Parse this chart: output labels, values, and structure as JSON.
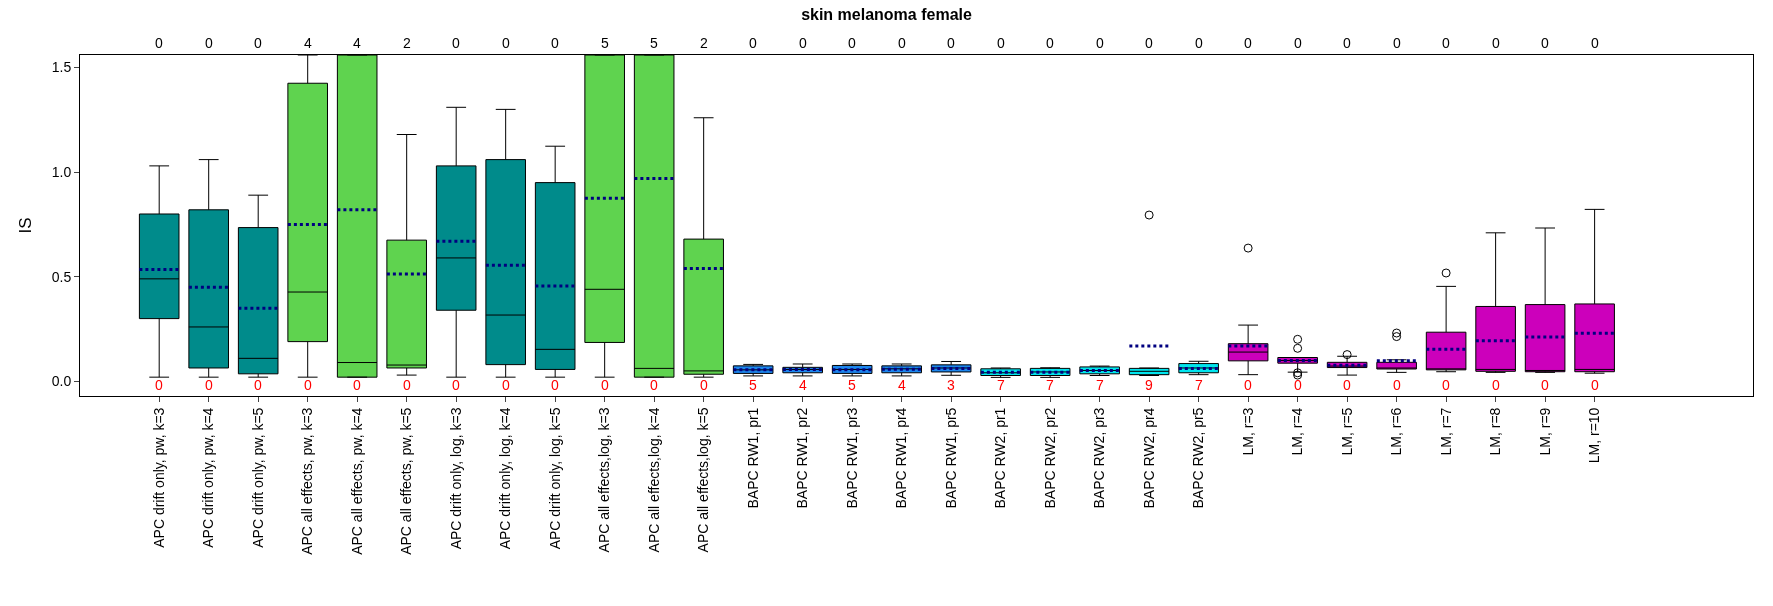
{
  "chart_data": {
    "type": "box",
    "title": "skin melanoma female",
    "ylabel": "IS",
    "categories": [
      "APC drift only, pw, k=3",
      "APC drift only, pw, k=4",
      "APC drift only, pw, k=5",
      "APC all effects, pw, k=3",
      "APC all effects, pw, k=4",
      "APC all effects, pw, k=5",
      "APC drift only, log, k=3",
      "APC drift only, log, k=4",
      "APC drift only, log, k=5",
      "APC all effects,log, k=3",
      "APC all effects,log, k=4",
      "APC all effects,log, k=5",
      "BAPC RW1, pr1",
      "BAPC RW1, pr2",
      "BAPC RW1, pr3",
      "BAPC RW1, pr4",
      "BAPC RW1, pr5",
      "BAPC RW2, pr1",
      "BAPC RW2, pr2",
      "BAPC RW2, pr3",
      "BAPC RW2, pr4",
      "BAPC RW2, pr5",
      "LM, r=3",
      "LM, r=4",
      "LM, r=5",
      "LM, r=6",
      "LM, r=7",
      "LM, r=8",
      "LM, r=9",
      "LM, r=10"
    ],
    "colors": [
      "#008b8b",
      "#008b8b",
      "#008b8b",
      "#5fd34f",
      "#5fd34f",
      "#5fd34f",
      "#008b8b",
      "#008b8b",
      "#008b8b",
      "#5fd34f",
      "#5fd34f",
      "#5fd34f",
      "#1c86ee",
      "#1c86ee",
      "#1c86ee",
      "#1c86ee",
      "#1c86ee",
      "#00e5ee",
      "#00e5ee",
      "#00e5ee",
      "#00e5ee",
      "#00e5ee",
      "#cc00bb",
      "#cc00bb",
      "#cc00bb",
      "#cc00bb",
      "#cc00bb",
      "#cc00bb",
      "#cc00bb",
      "#cc00bb"
    ],
    "boxes": [
      {
        "low": 0.02,
        "q1": 0.3,
        "median": 0.49,
        "q3": 0.8,
        "high": 1.03,
        "mean": 0.535
      },
      {
        "low": 0.02,
        "q1": 0.064,
        "median": 0.26,
        "q3": 0.82,
        "high": 1.06,
        "mean": 0.45
      },
      {
        "low": 0.02,
        "q1": 0.036,
        "median": 0.11,
        "q3": 0.735,
        "high": 0.89,
        "mean": 0.35
      },
      {
        "low": 0.02,
        "q1": 0.19,
        "median": 0.427,
        "q3": 1.425,
        "high": 1.56,
        "mean": 0.75
      },
      {
        "low": 0.02,
        "q1": 0.02,
        "median": 0.09,
        "q3": 1.56,
        "high": 1.56,
        "mean": 0.82
      },
      {
        "low": 0.03,
        "q1": 0.064,
        "median": 0.078,
        "q3": 0.675,
        "high": 1.18,
        "mean": 0.513
      },
      {
        "low": 0.02,
        "q1": 0.34,
        "median": 0.59,
        "q3": 1.03,
        "high": 1.31,
        "mean": 0.67
      },
      {
        "low": 0.02,
        "q1": 0.08,
        "median": 0.317,
        "q3": 1.06,
        "high": 1.3,
        "mean": 0.555
      },
      {
        "low": 0.02,
        "q1": 0.057,
        "median": 0.153,
        "q3": 0.95,
        "high": 1.124,
        "mean": 0.456
      },
      {
        "low": 0.02,
        "q1": 0.186,
        "median": 0.44,
        "q3": 1.56,
        "high": 1.56,
        "mean": 0.875
      },
      {
        "low": 0.02,
        "q1": 0.02,
        "median": 0.062,
        "q3": 1.56,
        "high": 1.56,
        "mean": 0.97
      },
      {
        "low": 0.02,
        "q1": 0.034,
        "median": 0.05,
        "q3": 0.68,
        "high": 1.26,
        "mean": 0.54
      },
      {
        "low": 0.026,
        "q1": 0.038,
        "median": 0.055,
        "q3": 0.074,
        "high": 0.081,
        "mean": 0.055
      },
      {
        "low": 0.026,
        "q1": 0.041,
        "median": 0.057,
        "q3": 0.067,
        "high": 0.083,
        "mean": 0.057
      },
      {
        "low": 0.026,
        "q1": 0.038,
        "median": 0.057,
        "q3": 0.076,
        "high": 0.083,
        "mean": 0.055
      },
      {
        "low": 0.026,
        "q1": 0.041,
        "median": 0.06,
        "q3": 0.074,
        "high": 0.083,
        "mean": 0.058
      },
      {
        "low": 0.029,
        "q1": 0.045,
        "median": 0.064,
        "q3": 0.079,
        "high": 0.095,
        "mean": 0.062
      },
      {
        "low": 0.019,
        "q1": 0.028,
        "median": 0.041,
        "q3": 0.06,
        "high": 0.064,
        "mean": 0.043
      },
      {
        "low": 0.019,
        "q1": 0.028,
        "median": 0.045,
        "q3": 0.062,
        "high": 0.065,
        "mean": 0.043
      },
      {
        "low": 0.028,
        "q1": 0.036,
        "median": 0.052,
        "q3": 0.069,
        "high": 0.073,
        "mean": 0.052
      },
      {
        "low": 0.028,
        "q1": 0.032,
        "median": 0.048,
        "q3": 0.062,
        "high": 0.064,
        "mean": 0.169,
        "outliers": [
          0.795
        ]
      },
      {
        "low": 0.032,
        "q1": 0.041,
        "median": 0.064,
        "q3": 0.085,
        "high": 0.096,
        "mean": 0.062
      },
      {
        "low": 0.032,
        "q1": 0.098,
        "median": 0.14,
        "q3": 0.18,
        "high": 0.269,
        "mean": 0.169,
        "outliers": [
          0.637
        ]
      },
      {
        "low": 0.044,
        "q1": 0.087,
        "median": 0.1,
        "q3": 0.114,
        "high": 0.114,
        "mean": 0.1,
        "outliers": [
          0.201,
          0.158,
          0.041,
          0.03
        ]
      },
      {
        "low": 0.03,
        "q1": 0.066,
        "median": 0.073,
        "q3": 0.091,
        "high": 0.12,
        "mean": 0.077,
        "outliers": [
          0.128
        ]
      },
      {
        "low": 0.043,
        "q1": 0.059,
        "median": 0.062,
        "q3": 0.091,
        "high": 0.103,
        "mean": 0.098,
        "outliers": [
          0.231,
          0.214
        ]
      },
      {
        "low": 0.046,
        "q1": 0.055,
        "median": 0.059,
        "q3": 0.235,
        "high": 0.454,
        "mean": 0.153,
        "outliers": [
          0.518
        ]
      },
      {
        "low": 0.043,
        "q1": 0.048,
        "median": 0.057,
        "q3": 0.358,
        "high": 0.71,
        "mean": 0.194
      },
      {
        "low": 0.043,
        "q1": 0.046,
        "median": 0.052,
        "q3": 0.367,
        "high": 0.733,
        "mean": 0.212
      },
      {
        "low": 0.039,
        "q1": 0.046,
        "median": 0.057,
        "q3": 0.37,
        "high": 0.822,
        "mean": 0.23
      }
    ],
    "ylim": [
      -0.07,
      1.56
    ],
    "yticks": [
      {
        "value": 0,
        "label": "0.0"
      },
      {
        "value": 0.5,
        "label": "0.5"
      },
      {
        "value": 1,
        "label": "1.0"
      },
      {
        "value": 1.5,
        "label": "1.5"
      }
    ],
    "annotations": [
      "0",
      "0",
      "0",
      "4",
      "4",
      "2",
      "0",
      "0",
      "0",
      "5",
      "5",
      "2",
      "0",
      "0",
      "0",
      "0",
      "0",
      "0",
      "0",
      "0",
      "0",
      "0",
      "0",
      "0",
      "0",
      "0",
      "0",
      "0",
      "0",
      "0",
      "0",
      "0",
      "0",
      "0",
      "0",
      "0",
      "0",
      "0",
      "0",
      "0",
      "0",
      "0",
      "5",
      "4",
      "5",
      "4",
      "3",
      "7",
      "7",
      "7",
      "9",
      "7",
      "0",
      "0",
      "0",
      "0",
      "0",
      "0",
      "0",
      "0"
    ]
  }
}
